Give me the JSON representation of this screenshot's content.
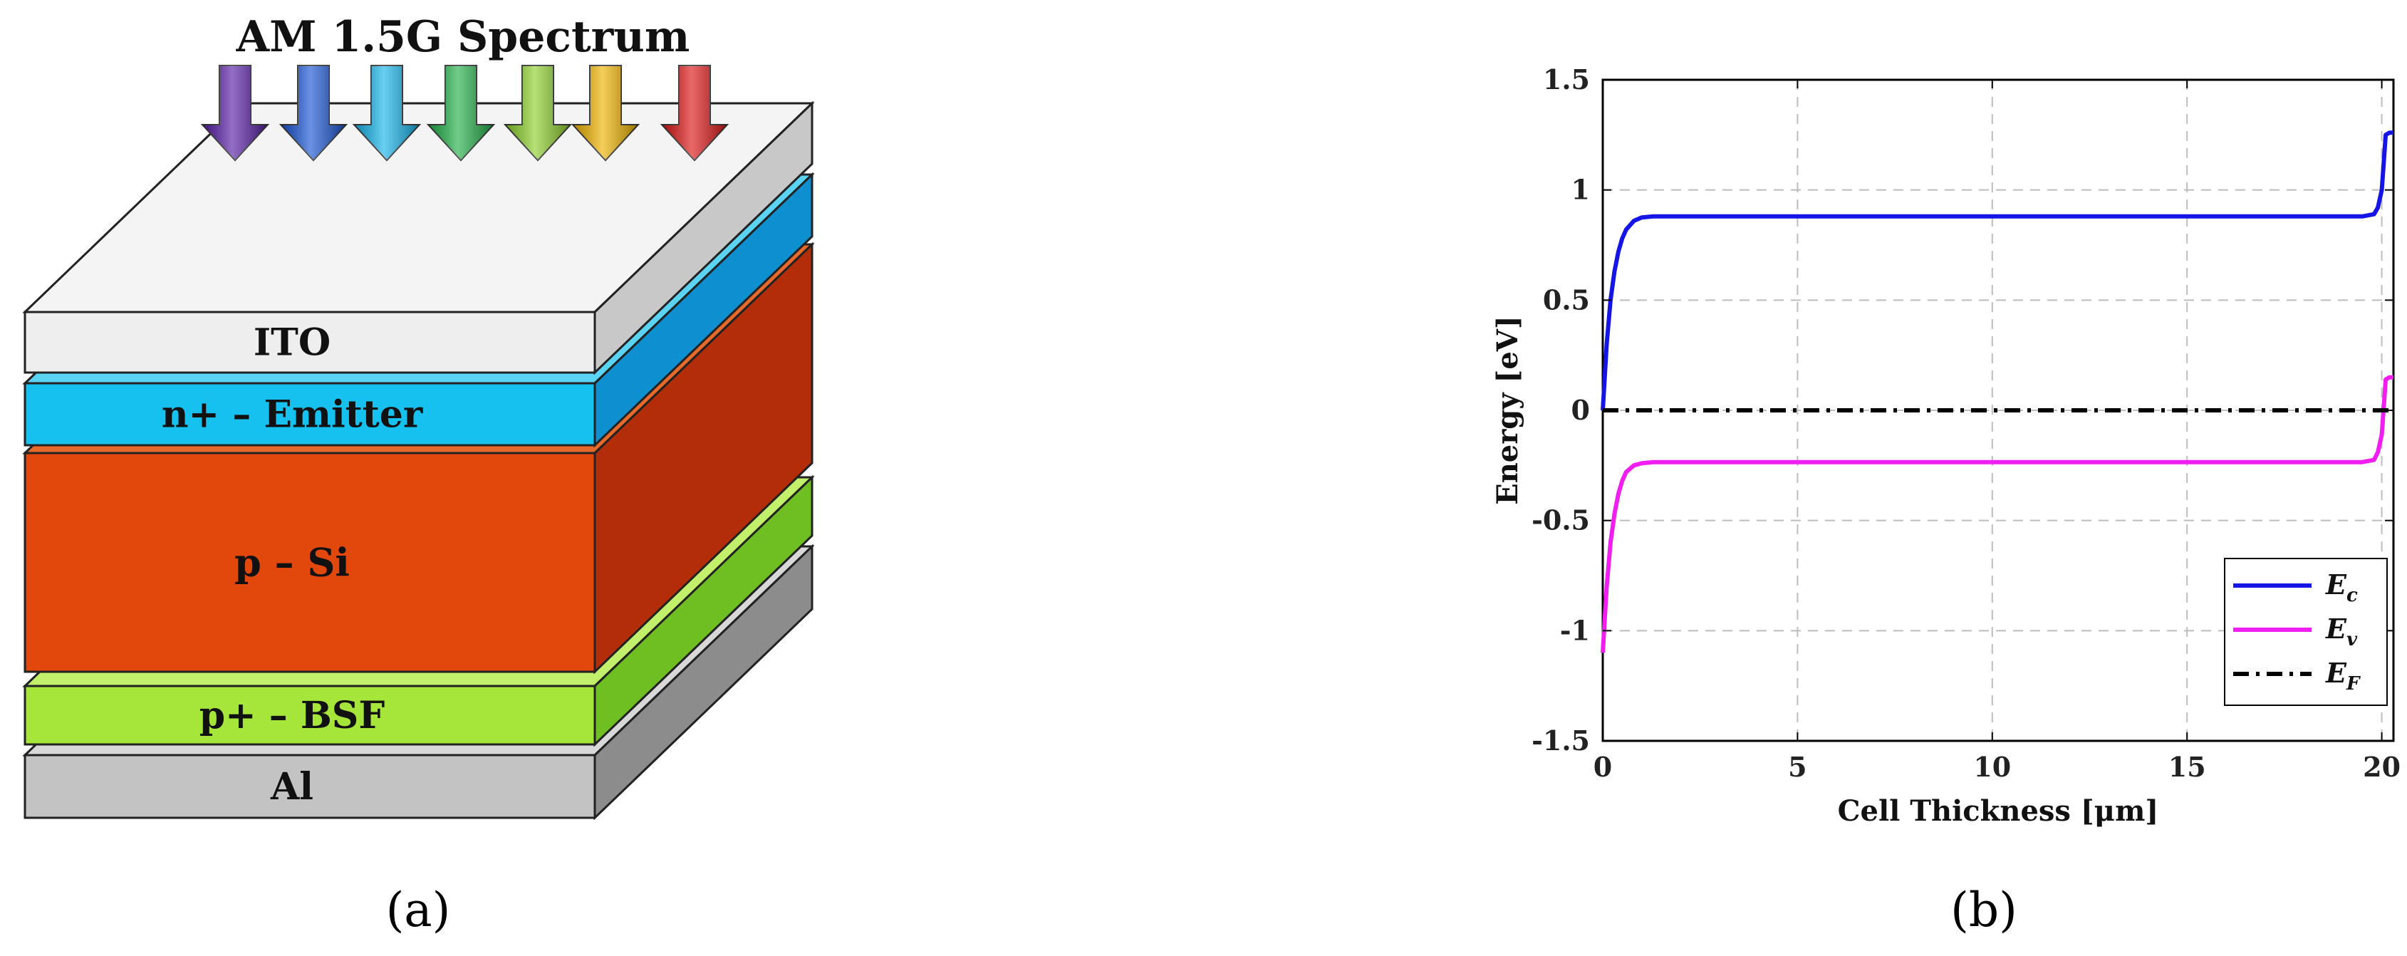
{
  "figure_a": {
    "title": "AM 1.5G Spectrum",
    "caption": "(a)",
    "layers": [
      {
        "label": "ITO",
        "front": "#eeeeee",
        "top": "#f4f4f4",
        "side": "#c8c8c8"
      },
      {
        "label": "n+ – Emitter",
        "front": "#16c0ef",
        "top": "#5bd3f2",
        "side": "#0d8fd0"
      },
      {
        "label": "p – Si",
        "front": "#e2470c",
        "top": "#e86a2a",
        "side": "#b32d08"
      },
      {
        "label": "p+ – BSF",
        "front": "#a6e63a",
        "top": "#c3f06a",
        "side": "#6fbe22"
      },
      {
        "label": "Al",
        "front": "#c3c3c3",
        "top": "#d8d8d8",
        "side": "#8c8c8c"
      }
    ],
    "arrows": [
      "#5a1fa8",
      "#1a56d6",
      "#17b6ec",
      "#23b34a",
      "#8ed12e",
      "#f0b400",
      "#e01818"
    ]
  },
  "figure_b": {
    "caption": "(b)",
    "chart_data": {
      "type": "line",
      "xlabel": "Cell Thickness [μm]",
      "ylabel": "Energy [eV]",
      "xlim": [
        0,
        20.3
      ],
      "ylim": [
        -1.5,
        1.5
      ],
      "xticks": [
        "0",
        "5",
        "10",
        "15",
        "20"
      ],
      "yticks": [
        "1.5",
        "1",
        "0.5",
        "0",
        "-0.5",
        "-1",
        "-1.5"
      ],
      "grid": true,
      "legend_position": "bottom-right",
      "series": [
        {
          "name": "E",
          "subscript": "c",
          "color": "#1515e6",
          "dash": "solid",
          "x": [
            0,
            0.1,
            0.2,
            0.3,
            0.4,
            0.5,
            0.6,
            0.8,
            1.0,
            1.3,
            2,
            5,
            10,
            15,
            19.5,
            19.8,
            19.9,
            20.0,
            20.1,
            20.2,
            20.3
          ],
          "y": [
            0,
            0.3,
            0.5,
            0.63,
            0.72,
            0.78,
            0.82,
            0.86,
            0.875,
            0.88,
            0.88,
            0.88,
            0.88,
            0.88,
            0.88,
            0.89,
            0.92,
            1.0,
            1.25,
            1.26,
            1.26
          ]
        },
        {
          "name": "E",
          "subscript": "v",
          "color": "#f01ef0",
          "dash": "solid",
          "x": [
            0,
            0.1,
            0.2,
            0.3,
            0.4,
            0.5,
            0.6,
            0.8,
            1.0,
            1.3,
            2,
            5,
            10,
            15,
            19.5,
            19.8,
            19.9,
            20.0,
            20.1,
            20.2,
            20.3
          ],
          "y": [
            -1.1,
            -0.8,
            -0.6,
            -0.47,
            -0.38,
            -0.32,
            -0.28,
            -0.25,
            -0.24,
            -0.235,
            -0.235,
            -0.235,
            -0.235,
            -0.235,
            -0.235,
            -0.225,
            -0.19,
            -0.11,
            0.14,
            0.15,
            0.15
          ]
        },
        {
          "name": "E",
          "subscript": "F",
          "color": "#000000",
          "dash": "dashdot",
          "x": [
            0,
            20.3
          ],
          "y": [
            0,
            0
          ]
        }
      ]
    }
  }
}
